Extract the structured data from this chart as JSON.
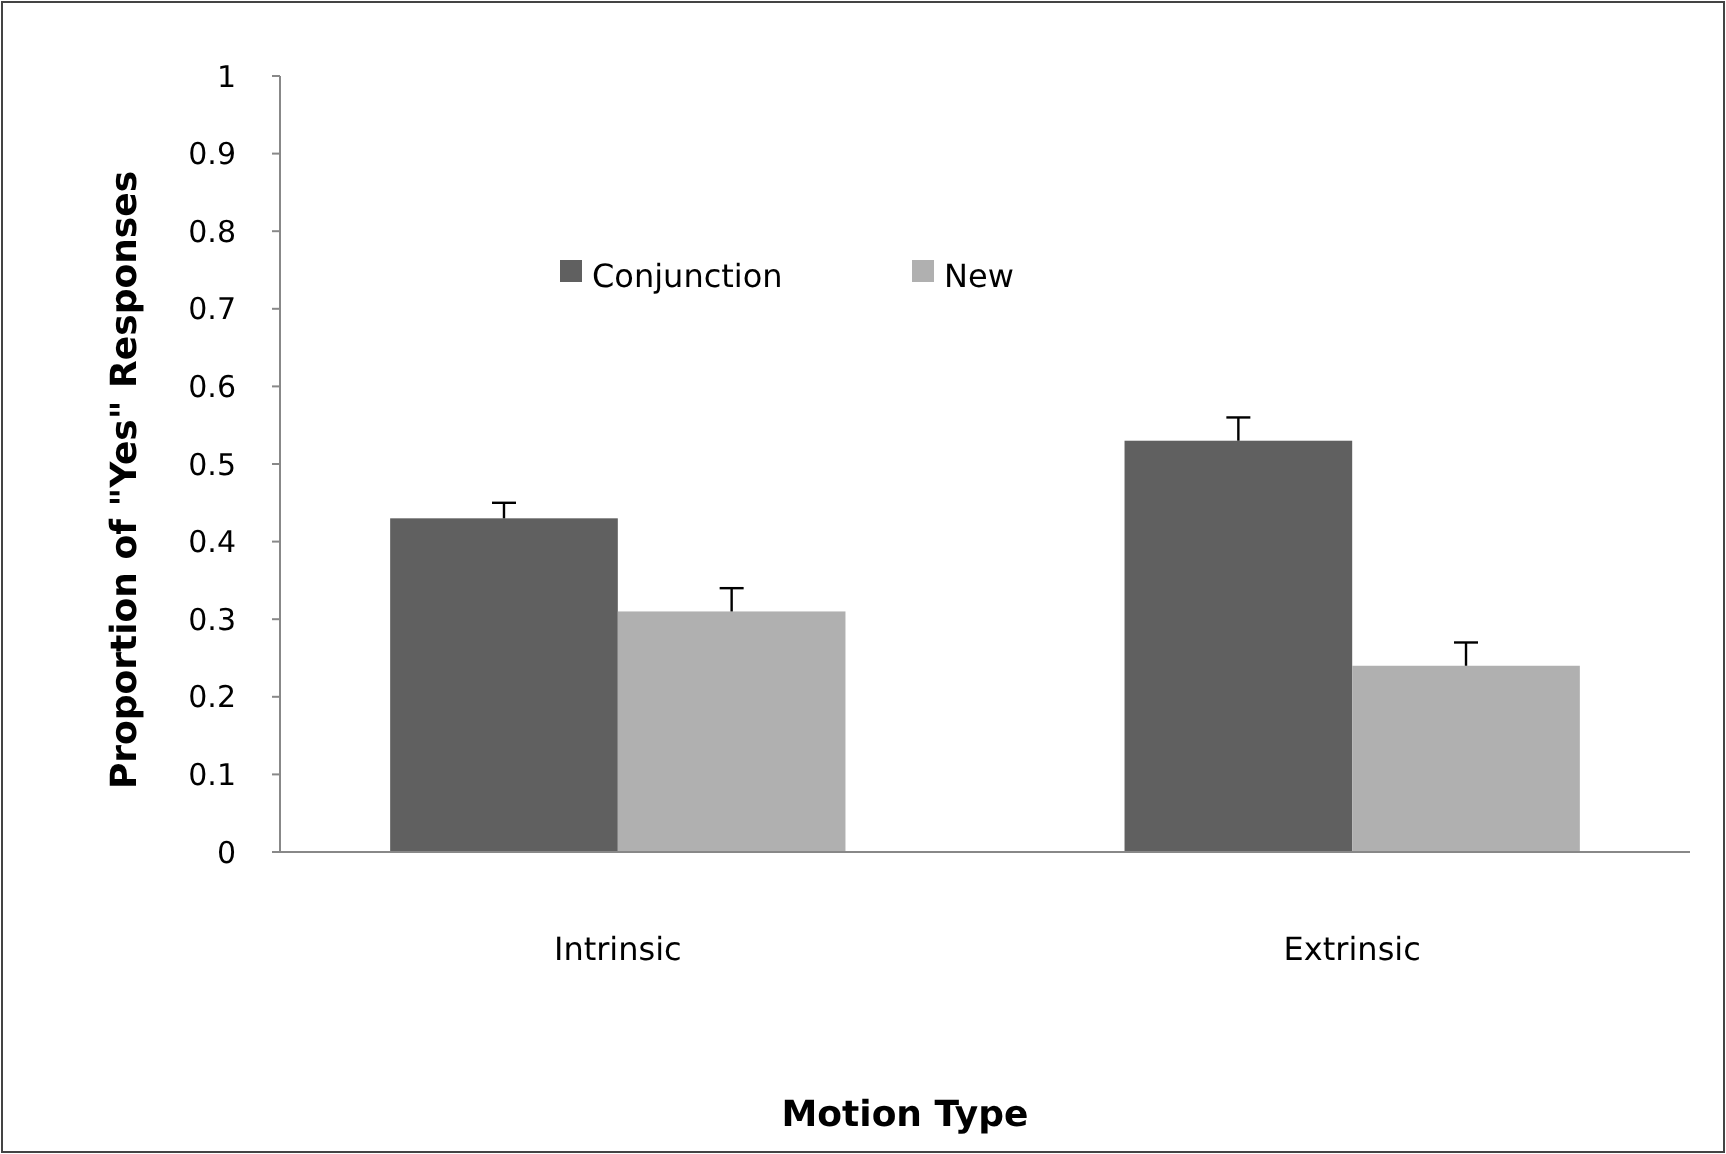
{
  "chart_data": {
    "type": "bar",
    "xlabel": "Motion Type",
    "ylabel": "Proportion of \"Yes\" Responses",
    "categories": [
      "Intrinsic",
      "Extrinsic"
    ],
    "series": [
      {
        "name": "Conjunction",
        "color": "#606060",
        "values": [
          0.43,
          0.53
        ],
        "errors": [
          [
            0.43,
            0.45
          ],
          [
            0.53,
            0.56
          ]
        ]
      },
      {
        "name": "New",
        "color": "#b0b0b0",
        "values": [
          0.31,
          0.24
        ],
        "errors": [
          [
            0.31,
            0.34
          ],
          [
            0.24,
            0.27
          ]
        ]
      }
    ],
    "ylim": [
      0,
      1
    ],
    "yticks": [
      0,
      0.1,
      0.2,
      0.3,
      0.4,
      0.5,
      0.6,
      0.7,
      0.8,
      0.9,
      1
    ],
    "grid": false,
    "legend": "top left"
  }
}
